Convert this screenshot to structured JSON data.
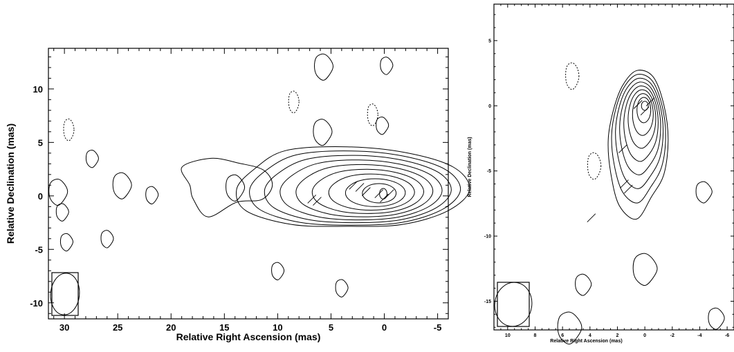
{
  "chart_data": [
    {
      "type": "contour",
      "xlabel": "Relative Right Ascension (mas)",
      "ylabel": "Relative Declination (mas)",
      "xlim": [
        31.5,
        -6.0
      ],
      "ylim": [
        -11.5,
        13.8
      ],
      "xticks": [
        30,
        25,
        20,
        15,
        10,
        5,
        0,
        -5
      ],
      "xtick_labels": [
        "30",
        "25",
        "20",
        "15",
        "10",
        "5",
        "0",
        "-5"
      ],
      "yticks": [
        10,
        5,
        0,
        -5,
        -10
      ],
      "ytick_labels": [
        "10",
        "5",
        "0",
        "-5",
        "-10"
      ],
      "peak": [
        0,
        0
      ],
      "contour_levels": 10,
      "jet_direction": "east (increasing RA offset)",
      "isolated_positive_components": [
        [
          14.0,
          0.8
        ],
        [
          10.0,
          -7.0
        ],
        [
          21.8,
          0.1
        ],
        [
          24.6,
          1.0
        ],
        [
          27.4,
          3.5
        ],
        [
          26.0,
          -4.0
        ],
        [
          30.6,
          0.4
        ],
        [
          30.2,
          -1.5
        ],
        [
          29.8,
          -4.3
        ],
        [
          5.8,
          6.0
        ],
        [
          0.2,
          6.6
        ],
        [
          4.0,
          -8.6
        ],
        [
          5.7,
          12.1
        ],
        [
          -0.2,
          12.2
        ]
      ],
      "negative_components": [
        [
          29.6,
          6.2
        ],
        [
          8.5,
          8.8
        ],
        [
          1.1,
          7.6
        ]
      ],
      "polarization_vectors": true,
      "beam": {
        "major_mas": 3.0,
        "minor_mas": 1.8,
        "position_angle_deg": 5
      }
    },
    {
      "type": "contour",
      "xlabel": "Relative Right Ascension (mas)",
      "ylabel": "Relative Declination (mas)",
      "xlim": [
        11.0,
        -6.5
      ],
      "ylim": [
        -17.2,
        7.8
      ],
      "xticks": [
        10,
        8,
        6,
        4,
        2,
        0,
        -2,
        -4,
        -6
      ],
      "xtick_labels": [
        "10",
        "8",
        "6",
        "4",
        "2",
        "0",
        "-2",
        "-4",
        "-6"
      ],
      "yticks": [
        5,
        0,
        -5,
        -10,
        -15
      ],
      "ytick_labels": [
        "5",
        "0",
        "-5",
        "-10",
        "-15"
      ],
      "peak": [
        0,
        0
      ],
      "contour_levels": 9,
      "jet_direction": "south",
      "isolated_positive_components": [
        [
          0.0,
          -12.5
        ],
        [
          4.5,
          -13.7
        ],
        [
          -5.2,
          -16.3
        ],
        [
          5.5,
          -17.0
        ],
        [
          -4.3,
          -6.6
        ]
      ],
      "negative_components": [
        [
          5.3,
          2.3
        ],
        [
          3.7,
          -4.6
        ]
      ],
      "polarization_vectors": true,
      "beam": {
        "major_mas": 2.6,
        "minor_mas": 1.8,
        "position_angle_deg": 8
      }
    }
  ]
}
